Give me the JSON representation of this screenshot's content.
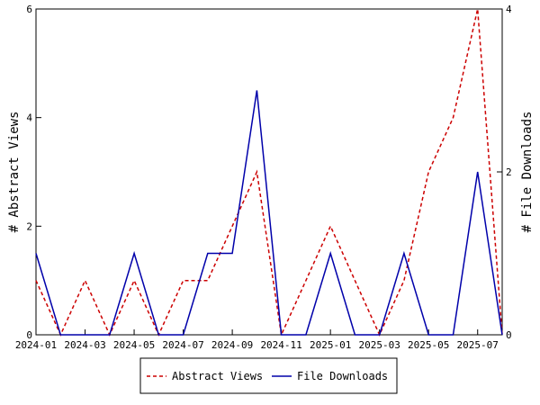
{
  "chart_data": {
    "type": "line",
    "x": [
      "2024-01",
      "2024-02",
      "2024-03",
      "2024-04",
      "2024-05",
      "2024-06",
      "2024-07",
      "2024-08",
      "2024-09",
      "2024-10",
      "2024-11",
      "2024-12",
      "2025-01",
      "2025-02",
      "2025-03",
      "2025-04",
      "2025-05",
      "2025-06",
      "2025-07",
      "2025-08"
    ],
    "x_ticks": [
      "2024-01",
      "2024-03",
      "2024-05",
      "2024-07",
      "2024-09",
      "2024-11",
      "2025-01",
      "2025-03",
      "2025-05",
      "2025-07"
    ],
    "series": [
      {
        "name": "Abstract Views",
        "axis": "left",
        "color": "#cc0000",
        "dash": "dashed",
        "values": [
          1,
          0,
          1,
          0,
          1,
          0,
          1,
          1,
          2,
          3,
          0,
          1,
          2,
          1,
          0,
          1,
          3,
          4,
          6,
          0
        ]
      },
      {
        "name": "File Downloads",
        "axis": "right",
        "color": "#0000aa",
        "dash": "solid",
        "values": [
          1,
          0,
          0,
          0,
          1,
          0,
          0,
          1,
          1,
          3,
          0,
          0,
          1,
          0,
          0,
          1,
          0,
          0,
          2,
          0
        ]
      }
    ],
    "ylabel_left": "# Abstract Views",
    "ylabel_right": "# File Downloads",
    "ylim_left": [
      0,
      6
    ],
    "ylim_right": [
      0,
      4
    ],
    "yticks_left": [
      0,
      2,
      4,
      6
    ],
    "yticks_right": [
      0,
      2,
      4
    ],
    "grid": false,
    "legend_position": "bottom-center"
  }
}
